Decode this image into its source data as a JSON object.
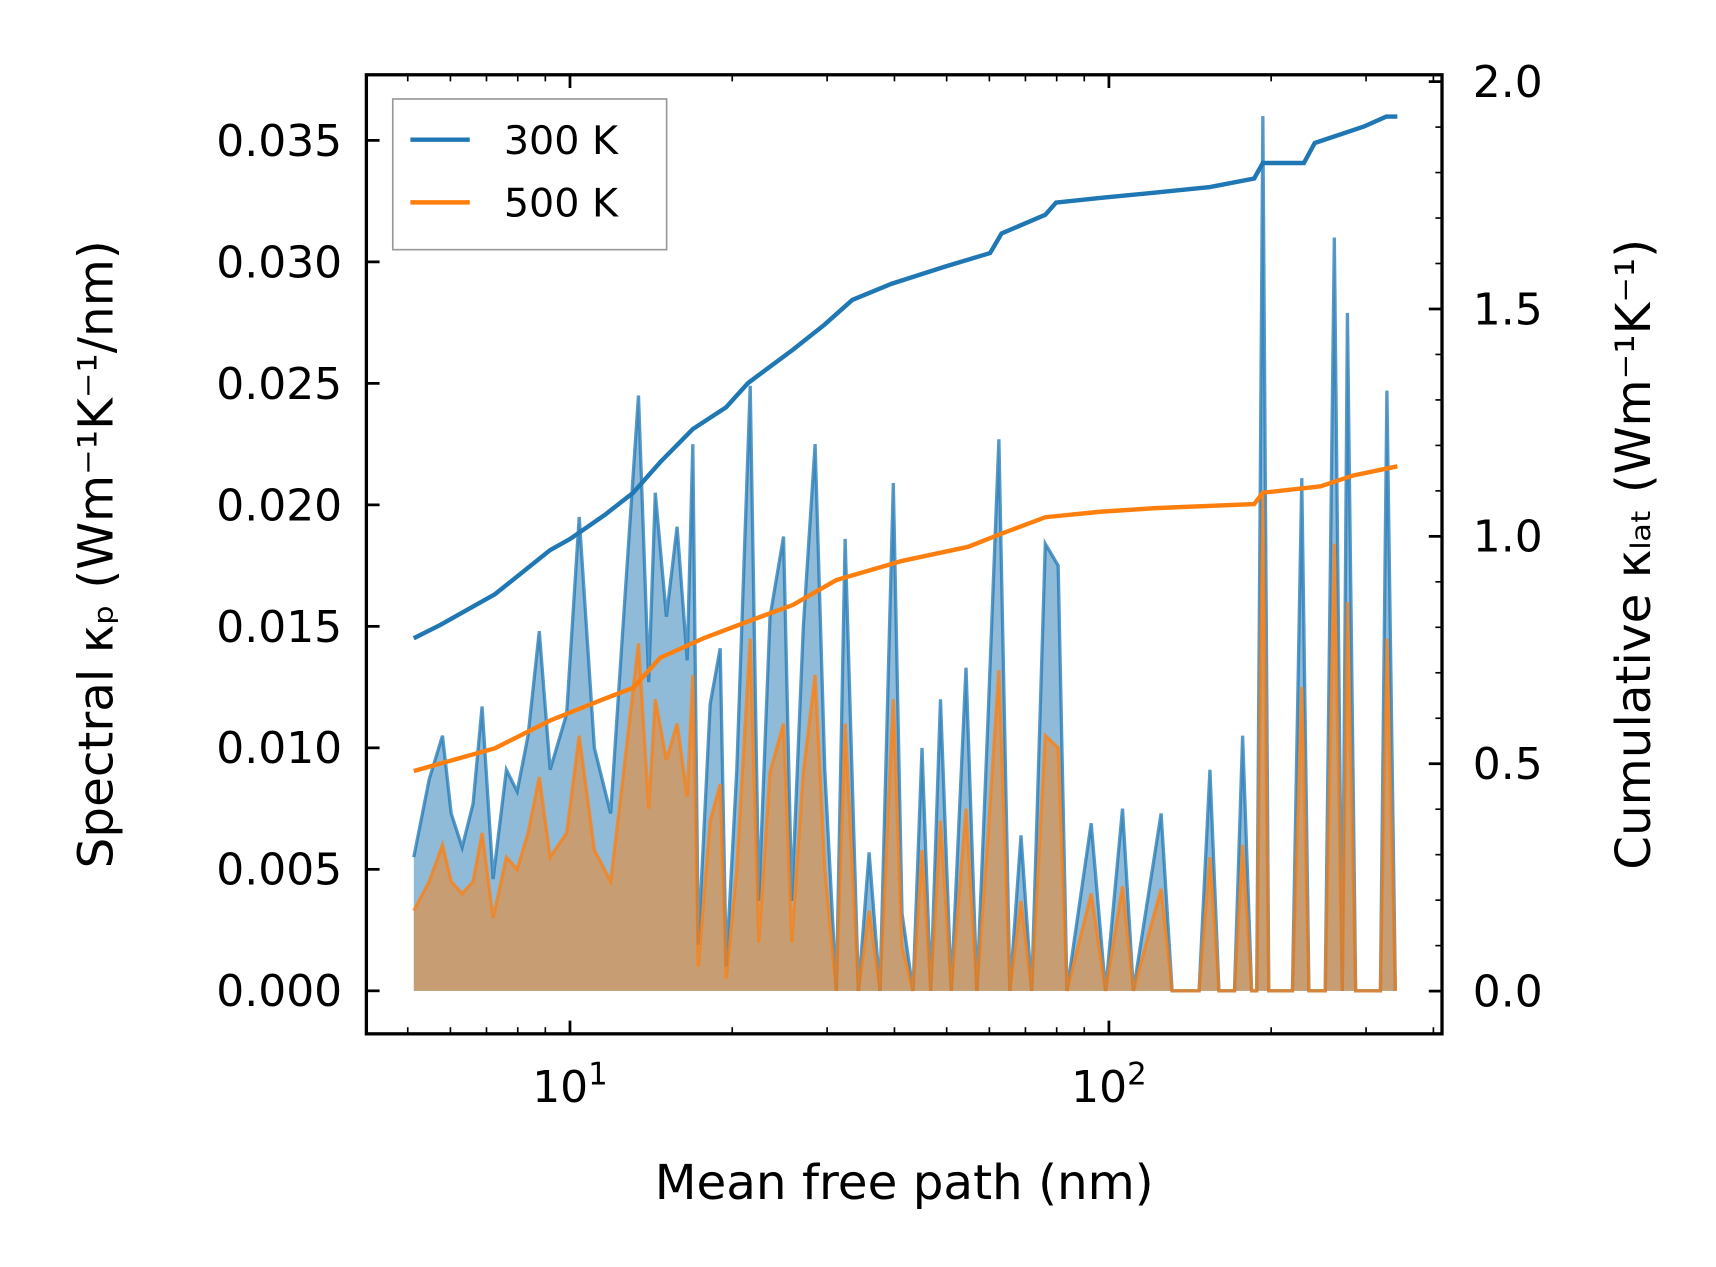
{
  "chart_data": {
    "type": "area",
    "title": "",
    "xlabel": "Mean free path (nm)",
    "ylabel_left": "Spectral κₚ (Wm⁻¹K⁻¹/nm)",
    "ylabel_right": "Cumulative κₗₐₜ (Wm⁻¹K⁻¹)",
    "xscale": "log",
    "xlim": [
      4.19,
      415
    ],
    "ylim_left": [
      -0.00177,
      0.0377
    ],
    "ylim_right": [
      -0.094,
      2.015
    ],
    "xticks": [
      {
        "value": 10,
        "base": "10",
        "exp": "1"
      },
      {
        "value": 100,
        "base": "10",
        "exp": "2"
      }
    ],
    "yticks_left": [
      "0.000",
      "0.005",
      "0.010",
      "0.015",
      "0.020",
      "0.025",
      "0.030",
      "0.035"
    ],
    "yticks_right": [
      "0.0",
      "0.5",
      "1.0",
      "1.5",
      "2.0"
    ],
    "legend": {
      "placement": "top-left",
      "entries": [
        "300 K",
        "500 K"
      ]
    },
    "colors": {
      "300 K": "#1f77b4",
      "500 K": "#ff7f0e"
    },
    "spectral": {
      "x": [
        5.13,
        5.48,
        5.8,
        6.02,
        6.31,
        6.61,
        6.87,
        7.2,
        7.62,
        7.98,
        8.36,
        8.77,
        9.19,
        9.86,
        10.4,
        11.1,
        11.9,
        12.5,
        13.4,
        14.0,
        14.4,
        15.1,
        15.8,
        16.5,
        16.9,
        17.3,
        18.2,
        19.0,
        19.5,
        20.4,
        21.6,
        22.4,
        23.5,
        24.9,
        25.8,
        27.1,
        28.5,
        29.7,
        31.2,
        32.4,
        34.3,
        35.9,
        37.6,
        39.8,
        41.3,
        43.3,
        45.0,
        46.7,
        48.7,
        51.0,
        54.3,
        56.9,
        59.7,
        62.5,
        65.5,
        68.7,
        71.9,
        76.2,
        80.5,
        83.6,
        92.7,
        98.6,
        106,
        111,
        125,
        131,
        147,
        154,
        160,
        171,
        177,
        184,
        188,
        193,
        198,
        219,
        228,
        235,
        252,
        262,
        271,
        277,
        287,
        319,
        328,
        340
      ],
      "series": [
        {
          "name": "300 K",
          "values": [
            0.0055,
            0.0087,
            0.0105,
            0.0073,
            0.0059,
            0.0077,
            0.0117,
            0.0046,
            0.0091,
            0.0082,
            0.0105,
            0.0148,
            0.0091,
            0.0114,
            0.0195,
            0.01,
            0.0073,
            0.0145,
            0.0245,
            0.0127,
            0.0205,
            0.0154,
            0.0191,
            0.0136,
            0.0225,
            0.0019,
            0.0118,
            0.0141,
            0.001,
            0.0091,
            0.0249,
            0.0037,
            0.0154,
            0.0187,
            0.0037,
            0.015,
            0.0225,
            0.0091,
            0,
            0.0186,
            0,
            0.0057,
            0,
            0.0209,
            0.0032,
            0,
            0.01,
            0,
            0.012,
            0,
            0.0133,
            0,
            0.0114,
            0.0227,
            0,
            0.0064,
            0,
            0.0184,
            0.0175,
            0,
            0.0069,
            0,
            0.0075,
            0,
            0.0073,
            0,
            0,
            0.0091,
            0,
            0,
            0.0105,
            0,
            0,
            0.036,
            0,
            0,
            0.0211,
            0,
            0,
            0.031,
            0,
            0.0279,
            0,
            0,
            0.0247,
            0
          ]
        },
        {
          "name": "500 K",
          "values": [
            0.0033,
            0.0045,
            0.006,
            0.0045,
            0.004,
            0.0045,
            0.0065,
            0.003,
            0.0055,
            0.005,
            0.0065,
            0.0088,
            0.0055,
            0.0065,
            0.0105,
            0.0058,
            0.0045,
            0.0085,
            0.0143,
            0.0075,
            0.012,
            0.0095,
            0.011,
            0.008,
            0.013,
            0.001,
            0.007,
            0.0085,
            0.0005,
            0.005,
            0.0145,
            0.002,
            0.009,
            0.011,
            0.002,
            0.009,
            0.013,
            0.005,
            0,
            0.011,
            0,
            0.0033,
            0,
            0.012,
            0.0018,
            0,
            0.0058,
            0,
            0.007,
            0,
            0.0075,
            0,
            0.0065,
            0.0132,
            0,
            0.0037,
            0,
            0.0105,
            0.01,
            0,
            0.004,
            0,
            0.0043,
            0,
            0.0042,
            0,
            0,
            0.0055,
            0,
            0,
            0.006,
            0,
            0,
            0.0204,
            0,
            0,
            0.0125,
            0,
            0,
            0.0184,
            0,
            0.016,
            0,
            0,
            0.0145,
            0
          ]
        }
      ]
    },
    "cumulative": [
      {
        "name": "300 K",
        "x": [
          5.13,
          5.74,
          7.26,
          9.19,
          10,
          11.6,
          13.1,
          14.7,
          16.9,
          19.5,
          21.4,
          25.9,
          29.7,
          33.4,
          39.4,
          49.9,
          60.2,
          63.2,
          76.2,
          79.8,
          96.3,
          122,
          154,
          186,
          193,
          230,
          241,
          297,
          327,
          343
        ],
        "values": [
          0.776,
          0.805,
          0.873,
          0.97,
          0.994,
          1.047,
          1.096,
          1.163,
          1.236,
          1.284,
          1.337,
          1.41,
          1.466,
          1.52,
          1.555,
          1.594,
          1.623,
          1.666,
          1.707,
          1.734,
          1.744,
          1.756,
          1.768,
          1.787,
          1.821,
          1.821,
          1.865,
          1.901,
          1.923,
          1.923
        ]
      },
      {
        "name": "500 K",
        "x": [
          5.13,
          7.26,
          9.19,
          11.6,
          13.1,
          14.7,
          17.7,
          21.4,
          25.9,
          31.2,
          41.3,
          54.8,
          63.2,
          76.2,
          96.3,
          122,
          186,
          193,
          247,
          284,
          343
        ],
        "values": [
          0.484,
          0.534,
          0.595,
          0.643,
          0.667,
          0.733,
          0.776,
          0.813,
          0.849,
          0.904,
          0.946,
          0.977,
          1.006,
          1.042,
          1.054,
          1.062,
          1.071,
          1.096,
          1.11,
          1.134,
          1.154
        ]
      }
    ]
  }
}
